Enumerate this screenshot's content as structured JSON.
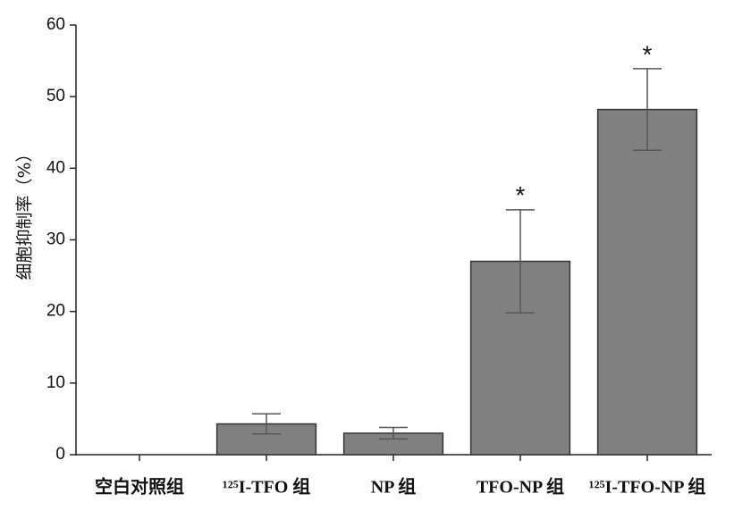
{
  "chart_data": {
    "type": "bar",
    "y_label": "细胞抑制率（%）",
    "categories": [
      "空白对照组",
      "¹²⁵I-TFO 组",
      "NP 组",
      "TFO-NP 组",
      "¹²⁵I-TFO-NP 组"
    ],
    "values": [
      0,
      4.3,
      3.0,
      27.0,
      48.2
    ],
    "errors": [
      null,
      1.4,
      0.8,
      7.2,
      5.7
    ],
    "significance": [
      null,
      null,
      null,
      "*",
      "*"
    ],
    "color": "#808080",
    "ylim": [
      0,
      60
    ],
    "yticks": [
      0,
      10,
      20,
      30,
      40,
      50,
      60
    ]
  }
}
